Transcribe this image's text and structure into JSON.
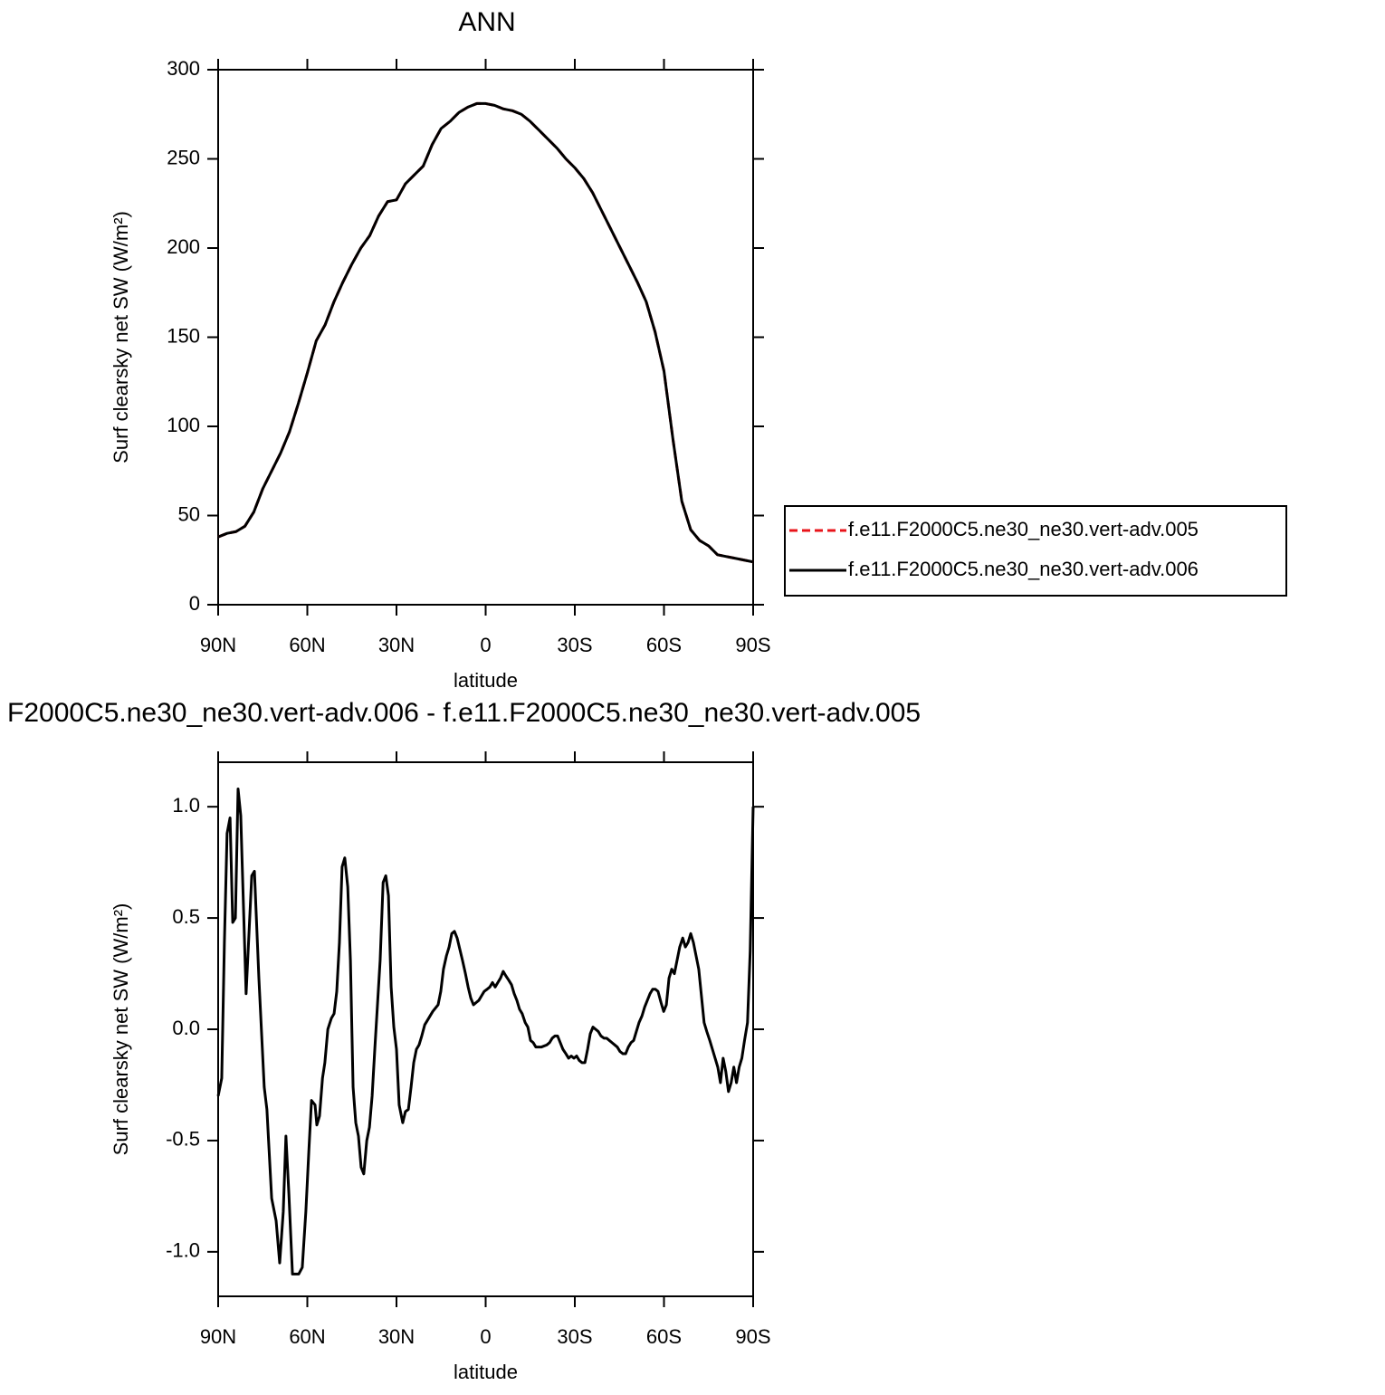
{
  "chart_data": [
    {
      "type": "line",
      "title": "ANN",
      "xlabel": "latitude",
      "ylabel": "Surf clearsky net SW (W/m²)",
      "x": [
        90,
        87,
        84,
        81,
        78,
        75,
        72,
        69,
        66,
        63,
        60,
        57,
        54,
        51,
        48,
        45,
        42,
        39,
        36,
        33,
        30,
        27,
        24,
        21,
        18,
        15,
        12,
        9,
        6,
        3,
        0,
        -3,
        -6,
        -9,
        -12,
        -15,
        -18,
        -21,
        -24,
        -27,
        -30,
        -33,
        -36,
        -39,
        -42,
        -45,
        -48,
        -51,
        -54,
        -57,
        -60,
        -63,
        -66,
        -69,
        -72,
        -75,
        -78,
        -81,
        -84,
        -87,
        -90
      ],
      "series": [
        {
          "name": "f.e11.F2000C5.ne30_ne30.vert-adv.005",
          "color": "#e8141b",
          "line_style": "dashed",
          "values": [
            38,
            40,
            41,
            44,
            52,
            65,
            75,
            85,
            97,
            113,
            130,
            148,
            157,
            170,
            181,
            191,
            200,
            207,
            218,
            226,
            227,
            236,
            241,
            246,
            258,
            267,
            271,
            276,
            279,
            281,
            281,
            280,
            278,
            277,
            275,
            271,
            266,
            261,
            256,
            250,
            245,
            239,
            231,
            221,
            211,
            201,
            191,
            181,
            170,
            153,
            131,
            93,
            58,
            42,
            36,
            33,
            28,
            27,
            26,
            25,
            24
          ]
        },
        {
          "name": "f.e11.F2000C5.ne30_ne30.vert-adv.006",
          "color": "#000000",
          "line_style": "solid",
          "values": [
            38,
            40,
            41,
            44,
            52,
            65,
            75,
            85,
            97,
            113,
            130,
            148,
            157,
            170,
            181,
            191,
            200,
            207,
            218,
            226,
            227,
            236,
            241,
            246,
            258,
            267,
            271,
            276,
            279,
            281,
            281,
            280,
            278,
            277,
            275,
            271,
            266,
            261,
            256,
            250,
            245,
            239,
            231,
            221,
            211,
            201,
            191,
            181,
            170,
            153,
            131,
            93,
            58,
            42,
            36,
            33,
            28,
            27,
            26,
            25,
            24
          ]
        }
      ],
      "xlim": [
        90,
        -90
      ],
      "xticks": [
        {
          "value": 90,
          "label": "90N"
        },
        {
          "value": 60,
          "label": "60N"
        },
        {
          "value": 30,
          "label": "30N"
        },
        0,
        {
          "value": -30,
          "label": "30S"
        },
        {
          "value": -60,
          "label": "60S"
        },
        {
          "value": -90,
          "label": "90S"
        }
      ],
      "ylim": [
        0,
        300
      ],
      "yticks": [
        0,
        50,
        100,
        150,
        200,
        250,
        300
      ],
      "legend": "right"
    },
    {
      "type": "line",
      "title": "F2000C5.ne30_ne30.vert-adv.006 - f.e11.F2000C5.ne30_ne30.vert-adv.005",
      "xlabel": "latitude",
      "ylabel": "Surf clearsky net SW (W/m²)",
      "x": [
        90,
        88.8,
        87.9,
        87,
        86,
        85.1,
        84.2,
        83.3,
        82.4,
        80.6,
        78.7,
        77.8,
        76.3,
        74.5,
        73.6,
        72,
        70.5,
        69.3,
        68.1,
        67.2,
        66.2,
        65,
        62.9,
        61.7,
        60.5,
        59.5,
        58.6,
        57.4,
        56.8,
        55.9,
        54.9,
        54.1,
        53.1,
        51.9,
        51,
        50.1,
        49.2,
        48.3,
        47.4,
        46.4,
        45.5,
        44.6,
        43.7,
        42.8,
        41.9,
        41,
        40,
        39.1,
        38.2,
        37.3,
        36.4,
        35.5,
        34.5,
        33.6,
        32.7,
        31.8,
        30.9,
        30,
        29.1,
        27.9,
        27,
        26,
        25.1,
        24.2,
        23.3,
        22.4,
        21.5,
        20.5,
        19.6,
        17.8,
        16,
        15.1,
        14.2,
        13.2,
        12.3,
        11.4,
        10.5,
        9.6,
        8.7,
        7.8,
        6.8,
        5.9,
        5,
        4.1,
        3.2,
        2.3,
        1.4,
        0.5,
        -0.5,
        -1.4,
        -2.3,
        -3.2,
        -4.1,
        -5,
        -5.9,
        -6.8,
        -7.8,
        -8.7,
        -9.6,
        -10.5,
        -11.4,
        -12.3,
        -13.3,
        -14.2,
        -15.1,
        -16,
        -16.9,
        -18.7,
        -20.6,
        -21.5,
        -22.4,
        -23.3,
        -24.2,
        -25.1,
        -26,
        -27,
        -27.9,
        -28.8,
        -29.7,
        -30.6,
        -31.5,
        -32.4,
        -33.4,
        -34.3,
        -35.2,
        -36.1,
        -37,
        -37.9,
        -38.8,
        -39.8,
        -40.7,
        -41.6,
        -42.5,
        -43.4,
        -44.3,
        -45.2,
        -46.2,
        -47.1,
        -48,
        -48.9,
        -49.8,
        -50.7,
        -51.6,
        -52.6,
        -53.5,
        -54.4,
        -55.3,
        -56.2,
        -57.1,
        -58,
        -59,
        -59.9,
        -60.8,
        -61.7,
        -62.6,
        -63.5,
        -64.4,
        -65.3,
        -66.3,
        -67.2,
        -68.1,
        -69,
        -69.9,
        -70.8,
        -71.7,
        -72.6,
        -73.5,
        -74.4,
        -75.4,
        -76.3,
        -77.2,
        -78.1,
        -79,
        -79.9,
        -80.8,
        -81.7,
        -82.6,
        -83.5,
        -84.4,
        -85.3,
        -86.2,
        -87.1,
        -88.1,
        -89,
        -90
      ],
      "series": [
        {
          "color": "#000000",
          "line_style": "solid",
          "values": [
            -0.3,
            -0.22,
            0.39,
            0.88,
            0.95,
            0.48,
            0.5,
            1.08,
            0.96,
            0.16,
            0.69,
            0.71,
            0.23,
            -0.26,
            -0.36,
            -0.76,
            -0.86,
            -1.05,
            -0.82,
            -0.48,
            -0.74,
            -1.1,
            -1.1,
            -1.07,
            -0.82,
            -0.55,
            -0.32,
            -0.34,
            -0.43,
            -0.39,
            -0.22,
            -0.15,
            0,
            0.05,
            0.07,
            0.17,
            0.39,
            0.73,
            0.77,
            0.64,
            0.31,
            -0.26,
            -0.42,
            -0.48,
            -0.62,
            -0.65,
            -0.5,
            -0.44,
            -0.3,
            -0.09,
            0.11,
            0.31,
            0.66,
            0.69,
            0.6,
            0.19,
            0.01,
            -0.09,
            -0.34,
            -0.42,
            -0.37,
            -0.36,
            -0.26,
            -0.15,
            -0.09,
            -0.07,
            -0.03,
            0.02,
            0.04,
            0.08,
            0.11,
            0.17,
            0.27,
            0.33,
            0.37,
            0.43,
            0.44,
            0.41,
            0.36,
            0.31,
            0.25,
            0.19,
            0.14,
            0.11,
            0.12,
            0.13,
            0.15,
            0.17,
            0.18,
            0.19,
            0.21,
            0.19,
            0.21,
            0.23,
            0.26,
            0.24,
            0.22,
            0.2,
            0.16,
            0.13,
            0.09,
            0.07,
            0.03,
            0.01,
            -0.05,
            -0.06,
            -0.08,
            -0.08,
            -0.07,
            -0.06,
            -0.04,
            -0.03,
            -0.03,
            -0.06,
            -0.09,
            -0.11,
            -0.13,
            -0.12,
            -0.13,
            -0.12,
            -0.14,
            -0.15,
            -0.15,
            -0.09,
            -0.02,
            0.01,
            0,
            -0.01,
            -0.03,
            -0.04,
            -0.04,
            -0.05,
            -0.06,
            -0.07,
            -0.08,
            -0.1,
            -0.11,
            -0.11,
            -0.08,
            -0.06,
            -0.05,
            -0.01,
            0.03,
            0.06,
            0.1,
            0.13,
            0.16,
            0.18,
            0.18,
            0.17,
            0.12,
            0.08,
            0.11,
            0.23,
            0.27,
            0.25,
            0.31,
            0.37,
            0.41,
            0.37,
            0.39,
            0.43,
            0.39,
            0.33,
            0.27,
            0.15,
            0.03,
            -0.01,
            -0.05,
            -0.09,
            -0.13,
            -0.17,
            -0.24,
            -0.13,
            -0.19,
            -0.28,
            -0.24,
            -0.17,
            -0.24,
            -0.17,
            -0.13,
            -0.05,
            0.03,
            0.35,
            1.0
          ]
        }
      ],
      "xlim": [
        90,
        -90
      ],
      "xticks": [
        {
          "value": 90,
          "label": "90N"
        },
        {
          "value": 60,
          "label": "60N"
        },
        {
          "value": 30,
          "label": "30N"
        },
        0,
        {
          "value": -30,
          "label": "30S"
        },
        {
          "value": -60,
          "label": "60S"
        },
        {
          "value": -90,
          "label": "90S"
        }
      ],
      "ylim": [
        -1.2,
        1.2
      ],
      "yticks": [
        {
          "value": 1,
          "label": "1.0"
        },
        0.5,
        {
          "value": 0,
          "label": "0.0"
        },
        -0.5,
        {
          "value": -1,
          "label": "-1.0"
        }
      ]
    }
  ]
}
